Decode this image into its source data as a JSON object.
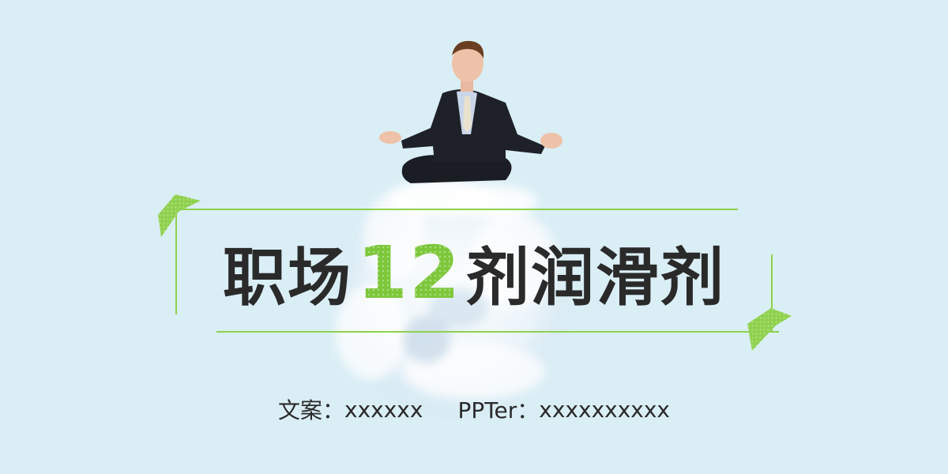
{
  "title": {
    "prefix": "职场",
    "number": "12",
    "suffix": "剂润滑剂"
  },
  "credits": {
    "copy_label": "文案：",
    "copy_value": "xxxxxx",
    "ppter_label": "PPTer：",
    "ppter_value": "xxxxxxxxxx"
  },
  "colors": {
    "background": "#daeef5",
    "accent_green": "#8fd14f",
    "number_green": "#7dc73a",
    "text": "#2a2a2a"
  },
  "decorations": {
    "photo": "meditating-businessman-photo",
    "cloud": "cloud-swirl-image",
    "flags": "green-dotted-flag-icon"
  }
}
